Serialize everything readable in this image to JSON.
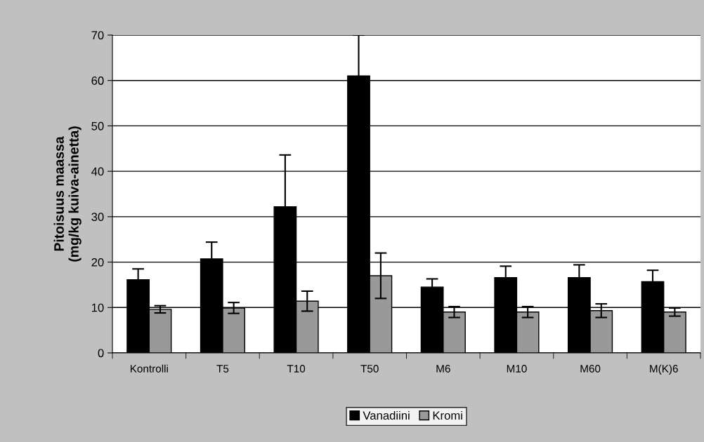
{
  "chart_data": {
    "type": "bar",
    "ylabel": "Pitoisuus maassa\n(mg/kg kuiva-ainetta)",
    "categories": [
      "Kontrolli",
      "T5",
      "T10",
      "T50",
      "M6",
      "M10",
      "M60",
      "M(K)6"
    ],
    "series": [
      {
        "name": "Vanadiini",
        "color": "#000000",
        "values": [
          16.1,
          20.7,
          32.2,
          61.0,
          14.5,
          16.6,
          16.6,
          15.7
        ],
        "errors": [
          2.4,
          3.7,
          11.4,
          9,
          1.8,
          2.5,
          2.8,
          2.5
        ]
      },
      {
        "name": "Kromi",
        "color": "#999999",
        "values": [
          9.6,
          9.9,
          11.4,
          17.0,
          9.0,
          9.0,
          9.3,
          9.0
        ],
        "errors": [
          0.8,
          1.2,
          2.2,
          5.0,
          1.2,
          1.2,
          1.5,
          0.9
        ]
      }
    ],
    "ylim": [
      0,
      70
    ],
    "yticks": [
      0,
      10,
      20,
      30,
      40,
      50,
      60,
      70
    ],
    "grid": "y",
    "legend": "bottom"
  }
}
